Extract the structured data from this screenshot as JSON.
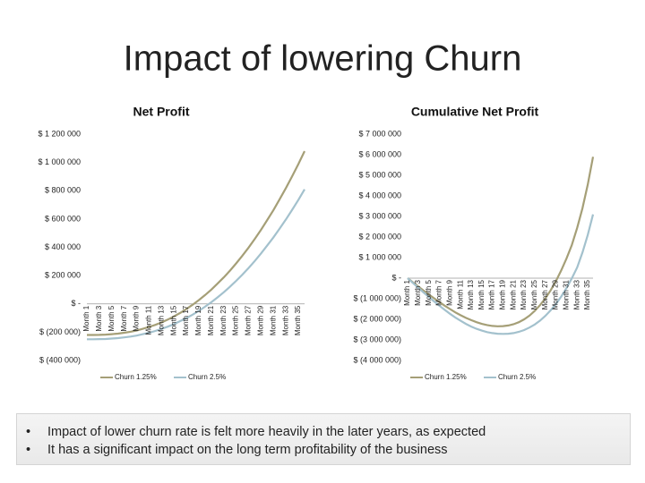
{
  "title": "Impact of lowering Churn",
  "bullets": [
    "Impact of lower churn rate is felt more heavily in the later years, as expected",
    "It has a significant impact on the long term profitability of the business"
  ],
  "chart_data": [
    {
      "type": "line",
      "title": "Net Profit",
      "categories": [
        "Month 1",
        null,
        "Month 3",
        null,
        "Month 5",
        null,
        "Month 7",
        null,
        "Month 9",
        null,
        "Month 11",
        null,
        "Month 13",
        null,
        "Month 15",
        null,
        "Month 17",
        null,
        "Month 19",
        null,
        "Month 21",
        null,
        "Month 23",
        null,
        "Month 25",
        null,
        "Month 27",
        null,
        "Month 29",
        null,
        "Month 31",
        null,
        "Month 33",
        null,
        "Month 35",
        null
      ],
      "series": [
        {
          "name": "Churn 1.25%",
          "color": "#a59f77",
          "values": [
            -220000,
            -220000,
            -219000,
            -217000,
            -214000,
            -210000,
            -204000,
            -197000,
            -188000,
            -176000,
            -163000,
            -148000,
            -131000,
            -111000,
            -88000,
            -64000,
            -36000,
            -6000,
            27000,
            62000,
            101000,
            143000,
            187000,
            235000,
            286000,
            341000,
            398000,
            460000,
            524000,
            593000,
            664000,
            740000,
            819000,
            902000,
            989000,
            1080000
          ]
        },
        {
          "name": "Churn 2.5%",
          "color": "#a3c1cd",
          "values": [
            -250000,
            -250000,
            -249000,
            -248000,
            -245000,
            -242000,
            -237000,
            -231000,
            -224000,
            -214000,
            -204000,
            -191000,
            -177000,
            -161000,
            -143000,
            -122000,
            -100000,
            -76000,
            -49000,
            -20000,
            12000,
            46000,
            82000,
            121000,
            163000,
            207000,
            254000,
            304000,
            357000,
            413000,
            471000,
            533000,
            597000,
            665000,
            736000,
            810000
          ]
        }
      ],
      "ylim": [
        -400000,
        1200000
      ],
      "yticks": [
        {
          "value": -400000,
          "label": "$ (400 000)"
        },
        {
          "value": -200000,
          "label": "$ (200 000)"
        },
        {
          "value": 0,
          "label": "$ -"
        },
        {
          "value": 200000,
          "label": "$ 200 000"
        },
        {
          "value": 400000,
          "label": "$ 400 000"
        },
        {
          "value": 600000,
          "label": "$ 600 000"
        },
        {
          "value": 800000,
          "label": "$ 800 000"
        },
        {
          "value": 1000000,
          "label": "$ 1 000 000"
        },
        {
          "value": 1200000,
          "label": "$ 1 200 000"
        }
      ],
      "legend": "bottom"
    },
    {
      "type": "line",
      "title": "Cumulative Net Profit",
      "categories": [
        "Month 1",
        null,
        "Month 3",
        null,
        "Month 5",
        null,
        "Month 7",
        null,
        "Month 9",
        null,
        "Month 11",
        null,
        "Month 13",
        null,
        "Month 15",
        null,
        "Month 17",
        null,
        "Month 19",
        null,
        "Month 21",
        null,
        "Month 23",
        null,
        "Month 25",
        null,
        "Month 27",
        null,
        "Month 29",
        null,
        "Month 31",
        null,
        "Month 33",
        null,
        "Month 35",
        null
      ],
      "series": [
        {
          "name": "Churn 1.25%",
          "color": "#a59f77",
          "values": [
            0,
            -200000,
            -400000,
            -600000,
            -790000,
            -980000,
            -1160000,
            -1340000,
            -1500000,
            -1660000,
            -1800000,
            -1930000,
            -2040000,
            -2140000,
            -2220000,
            -2280000,
            -2320000,
            -2340000,
            -2330000,
            -2300000,
            -2240000,
            -2140000,
            -2000000,
            -1820000,
            -1590000,
            -1310000,
            -980000,
            -590000,
            -140000,
            380000,
            960000,
            1610000,
            2450000,
            3400000,
            4550000,
            5900000
          ]
        },
        {
          "name": "Churn 2.5%",
          "color": "#a3c1cd",
          "values": [
            0,
            -230000,
            -460000,
            -690000,
            -910000,
            -1130000,
            -1340000,
            -1540000,
            -1730000,
            -1910000,
            -2070000,
            -2220000,
            -2350000,
            -2460000,
            -2550000,
            -2620000,
            -2670000,
            -2700000,
            -2710000,
            -2700000,
            -2670000,
            -2610000,
            -2520000,
            -2400000,
            -2250000,
            -2060000,
            -1830000,
            -1560000,
            -1250000,
            -890000,
            -480000,
            -10000,
            520000,
            1250000,
            2100000,
            3100000
          ]
        }
      ],
      "ylim": [
        -4000000,
        7000000
      ],
      "yticks": [
        {
          "value": -4000000,
          "label": "$ (4 000 000)"
        },
        {
          "value": -3000000,
          "label": "$ (3 000 000)"
        },
        {
          "value": -2000000,
          "label": "$ (2 000 000)"
        },
        {
          "value": -1000000,
          "label": "$ (1 000 000)"
        },
        {
          "value": 0,
          "label": "$ -"
        },
        {
          "value": 1000000,
          "label": "$ 1 000 000"
        },
        {
          "value": 2000000,
          "label": "$ 2 000 000"
        },
        {
          "value": 3000000,
          "label": "$ 3 000 000"
        },
        {
          "value": 4000000,
          "label": "$ 4 000 000"
        },
        {
          "value": 5000000,
          "label": "$ 5 000 000"
        },
        {
          "value": 6000000,
          "label": "$ 6 000 000"
        },
        {
          "value": 7000000,
          "label": "$ 7 000 000"
        }
      ],
      "legend": "bottom"
    }
  ]
}
